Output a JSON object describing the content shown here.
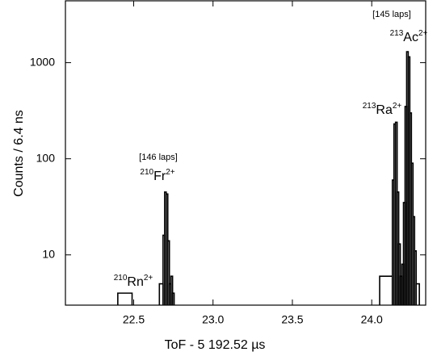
{
  "chart_data": {
    "type": "histogram",
    "xlabel": "ToF - 5 192.52 µs",
    "ylabel": "Counts / 6.4 ns",
    "bins": [
      22.4,
      22.49,
      22.662,
      22.685,
      22.695,
      22.705,
      22.715,
      22.725,
      22.735,
      22.745,
      22.755,
      24.05,
      24.13,
      24.14,
      24.15,
      24.16,
      24.17,
      24.18,
      24.19,
      24.2,
      24.21,
      24.22,
      24.23,
      24.24,
      24.25,
      24.26,
      24.27,
      24.28,
      24.3
    ],
    "values": [
      4,
      null,
      5,
      16,
      45,
      43,
      14,
      5,
      6,
      4,
      null,
      6,
      60,
      230,
      240,
      45,
      13,
      6,
      8,
      35,
      350,
      1300,
      1150,
      300,
      90,
      25,
      11,
      5
    ],
    "color": "#000000",
    "xlim": [
      22.07,
      24.34
    ],
    "xticks": [
      22.5,
      {
        "value": 23.0,
        "label": "23.0"
      },
      23.5,
      {
        "value": 24.0,
        "label": "24.0"
      }
    ],
    "ylim": [
      3,
      4400
    ],
    "yscale": "log",
    "yticks": [
      10,
      100,
      1000
    ],
    "annotations": [
      {
        "mass": "210",
        "element": "Rn",
        "charge": "2+"
      },
      {
        "text": "[146 laps]"
      },
      {
        "mass": "210",
        "element": "Fr",
        "charge": "2+"
      },
      {
        "mass": "213",
        "element": "Ra",
        "charge": "2+"
      },
      {
        "text": "[145 laps]"
      },
      {
        "mass": "213",
        "element": "Ac",
        "charge": "2+"
      }
    ]
  }
}
